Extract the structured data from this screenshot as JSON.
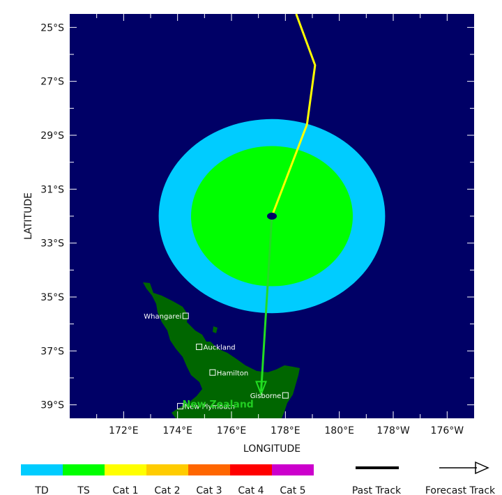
{
  "chart_data": {
    "type": "map",
    "xlabel": "LONGITUDE",
    "ylabel": "LATITUDE",
    "lon_ticks": [
      {
        "lon": 172,
        "label": "172°E"
      },
      {
        "lon": 174,
        "label": "174°E"
      },
      {
        "lon": 176,
        "label": "176°E"
      },
      {
        "lon": 178,
        "label": "178°E"
      },
      {
        "lon": 180,
        "label": "180°E"
      },
      {
        "lon": 182,
        "label": "178°W"
      },
      {
        "lon": 184,
        "label": "176°W"
      }
    ],
    "lat_ticks": [
      {
        "lat": -25,
        "label": "25°S"
      },
      {
        "lat": -27,
        "label": "27°S"
      },
      {
        "lat": -29,
        "label": "29°S"
      },
      {
        "lat": -31,
        "label": "31°S"
      },
      {
        "lat": -33,
        "label": "33°S"
      },
      {
        "lat": -35,
        "label": "35°S"
      },
      {
        "lat": -37,
        "label": "37°S"
      },
      {
        "lat": -39,
        "label": "39°S"
      }
    ],
    "lon_range": [
      170.0,
      185.0
    ],
    "lat_range": [
      -39.5,
      -24.5
    ],
    "wind_field": {
      "center": [
        177.5,
        -32.0
      ],
      "ts_radius_lon": 3.0,
      "ts_radius_lat": 2.6,
      "td_radius_lon": 4.2,
      "td_radius_lat": 3.6
    },
    "past_track": [
      [
        178.4,
        -24.5
      ],
      [
        179.1,
        -26.4
      ],
      [
        178.8,
        -28.6
      ],
      [
        177.5,
        -32.0
      ]
    ],
    "forecast_track": [
      [
        177.5,
        -32.0
      ],
      [
        177.1,
        -38.5
      ]
    ],
    "storm_center": [
      177.5,
      -32.0
    ],
    "cities": [
      {
        "name": "Whangarei",
        "lon": 174.3,
        "lat": -35.7
      },
      {
        "name": "Auckland",
        "lon": 174.8,
        "lat": -36.85
      },
      {
        "name": "Hamilton",
        "lon": 175.3,
        "lat": -37.8
      },
      {
        "name": "Gisborne",
        "lon": 178.0,
        "lat": -38.65
      },
      {
        "name": "New Plymouth",
        "lon": 174.1,
        "lat": -39.05
      }
    ],
    "country_label": {
      "name": "New Zealand",
      "lon": 175.5,
      "lat": -39.0
    }
  },
  "colors": {
    "ocean": "#000066",
    "land": "#006600",
    "td": "#00ccff",
    "ts": "#00ff00",
    "past_track": "#ffff00",
    "forecast_track": "#22dd22",
    "cat1": "#ffff00",
    "cat2": "#ffcc00",
    "cat3": "#ff6600",
    "cat4": "#ff0000",
    "cat5": "#cc00cc"
  },
  "legend": {
    "categories": [
      "TD",
      "TS",
      "Cat 1",
      "Cat 2",
      "Cat 3",
      "Cat 4",
      "Cat 5"
    ],
    "past_track": "Past Track",
    "forecast_track": "Forecast Track"
  }
}
